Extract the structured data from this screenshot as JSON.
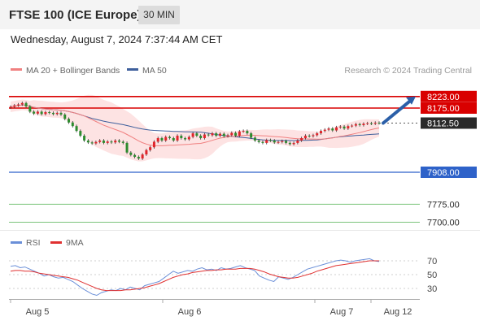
{
  "header": {
    "title": "FTSE 100 (ICE Europe)",
    "timeframe": "30 MIN",
    "datetime": "Wednesday, August 7, 2024 7:37:44 AM CET"
  },
  "copyright": "Research © 2024 Trading Central",
  "colors": {
    "up_candle": "#e0242a",
    "down_candle": "#2e8b2e",
    "bollinger_fill": "#fde3e3",
    "ma20": "#f08080",
    "ma50": "#3e5f9c",
    "resistance": "#d90000",
    "support": "#2e62c9",
    "target": "#7bc47b",
    "arrow": "#2b5fa8",
    "rsi": "#6a8fd8",
    "rsi_ma": "#e03030"
  },
  "chart_data": [
    {
      "type": "candlestick",
      "title": "FTSE 100 (ICE Europe)",
      "timeframe": "30 MIN",
      "legend": [
        {
          "name": "MA 20 + Bollinger Bands",
          "color": "#f08080"
        },
        {
          "name": "MA 50",
          "color": "#3e5f9c"
        }
      ],
      "x_tick_labels": [
        "Aug 5",
        "Aug 6",
        "Aug 7",
        "Aug 12"
      ],
      "ylim": [
        7680,
        8240
      ],
      "grid": false,
      "close_series": [
        8180,
        8186,
        8190,
        8196,
        8182,
        8160,
        8152,
        8160,
        8150,
        8158,
        8155,
        8150,
        8155,
        8148,
        8130,
        8115,
        8100,
        8080,
        8060,
        8040,
        8032,
        8028,
        8034,
        8040,
        8030,
        8036,
        8032,
        8040,
        8035,
        8030,
        7990,
        7980,
        7972,
        7965,
        7982,
        8000,
        8012,
        8035,
        8050,
        8040,
        8055,
        8050,
        8040,
        8060,
        8050,
        8045,
        8055,
        8070,
        8060,
        8050,
        8065,
        8062,
        8070,
        8060,
        8068,
        8058,
        8062,
        8072,
        8060,
        8078,
        8080,
        8070,
        8052,
        8040,
        8034,
        8030,
        8042,
        8040,
        8032,
        8034,
        8038,
        8030,
        8025,
        8030,
        8040,
        8050,
        8060,
        8058,
        8062,
        8070,
        8080,
        8085,
        8090,
        8082,
        8095,
        8098,
        8090,
        8100,
        8102,
        8108,
        8104,
        8110,
        8112,
        8110,
        8114,
        8112
      ],
      "horizontal_levels": [
        {
          "value": 8223.0,
          "label": "8223.00",
          "kind": "resistance"
        },
        {
          "value": 8175.0,
          "label": "8175.00",
          "kind": "resistance"
        },
        {
          "value": 8112.5,
          "label": "8112.50",
          "kind": "last-price"
        },
        {
          "value": 7908.0,
          "label": "7908.00",
          "kind": "support"
        },
        {
          "value": 7775.0,
          "label": "7775.00",
          "kind": "target"
        },
        {
          "value": 7700.0,
          "label": "7700.00",
          "kind": "target"
        }
      ],
      "forecast_arrow": {
        "from_value": 8112.5,
        "to_value": 8223.0
      }
    },
    {
      "type": "line",
      "title": "RSI",
      "legend": [
        {
          "name": "RSI",
          "color": "#6a8fd8"
        },
        {
          "name": "9MA",
          "color": "#e03030"
        }
      ],
      "ylim": [
        10,
        85
      ],
      "y_tick_labels": [
        "70",
        "50",
        "30"
      ],
      "y_ticks": [
        70,
        50,
        30
      ],
      "rsi": [
        62,
        63,
        60,
        61,
        58,
        55,
        52,
        48,
        50,
        47,
        45,
        46,
        43,
        40,
        35,
        30,
        26,
        22,
        20,
        24,
        26,
        28,
        27,
        30,
        28,
        32,
        30,
        28,
        34,
        36,
        38,
        40,
        45,
        50,
        55,
        52,
        54,
        56,
        55,
        58,
        60,
        57,
        58,
        56,
        60,
        58,
        59,
        61,
        63,
        60,
        58,
        56,
        48,
        45,
        42,
        40,
        47,
        45,
        43,
        46,
        50,
        54,
        58,
        60,
        62,
        64,
        66,
        68,
        70,
        71,
        70,
        68,
        70,
        71,
        72,
        73,
        70,
        69
      ],
      "ma9": [
        55,
        56,
        56,
        55,
        55,
        54,
        52,
        51,
        50,
        49,
        48,
        47,
        46,
        44,
        42,
        39,
        36,
        33,
        30,
        28,
        27,
        27,
        27,
        27,
        28,
        28,
        29,
        30,
        31,
        33,
        35,
        37,
        40,
        43,
        46,
        48,
        50,
        51,
        53,
        54,
        55,
        56,
        56,
        57,
        57,
        58,
        58,
        58,
        59,
        59,
        59,
        58,
        56,
        54,
        51,
        49,
        47,
        46,
        45,
        45,
        46,
        48,
        50,
        52,
        55,
        57,
        59,
        61,
        63,
        64,
        65,
        66,
        67,
        68,
        69,
        70,
        70,
        70
      ]
    }
  ]
}
